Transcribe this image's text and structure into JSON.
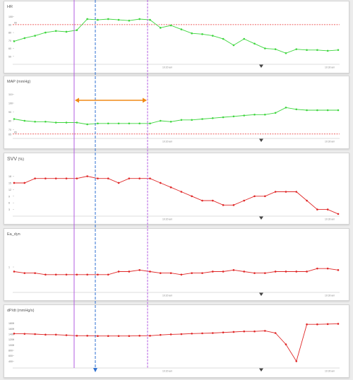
{
  "colors": {
    "green": "#3fd63f",
    "red": "#e02828",
    "threshold": "#e83030",
    "cursor_purple": "#b35ce0",
    "cursor_blue": "#2d6fd0",
    "range_arrow": "#f08a16",
    "marker": "#444444"
  },
  "time_labels": [
    "10:20 am",
    "10:30 am"
  ],
  "panels": [
    {
      "title": "HR",
      "series_color": "green",
      "ylim": [
        40,
        105
      ],
      "yticks": [
        {
          "v": 100,
          "t": "100"
        },
        {
          "v": 90,
          "t": "90"
        },
        {
          "v": 80,
          "t": "80"
        },
        {
          "v": 70,
          "t": "70"
        },
        {
          "v": 60,
          "t": "60"
        },
        {
          "v": 50,
          "t": "50"
        }
      ],
      "threshold": {
        "v": 90,
        "label": "90"
      },
      "values": [
        69,
        73,
        76,
        80,
        82,
        81,
        83,
        97,
        96,
        97,
        96,
        95,
        97,
        96,
        86,
        89,
        84,
        79,
        78,
        76,
        72,
        64,
        72,
        66,
        60,
        59,
        54,
        59,
        58,
        58,
        57,
        58
      ]
    },
    {
      "title": "MAP (mmHg)",
      "series_color": "green",
      "ylim": [
        60,
        116
      ],
      "yticks": [
        {
          "v": 110,
          "t": "110"
        },
        {
          "v": 100,
          "t": "100"
        },
        {
          "v": 90,
          "t": "90"
        },
        {
          "v": 80,
          "t": "80"
        },
        {
          "v": 70,
          "t": "70"
        },
        {
          "v": 65,
          "t": "65"
        }
      ],
      "threshold": {
        "v": 65,
        "label": "65"
      },
      "values": [
        82,
        80,
        79,
        79,
        78,
        78,
        78,
        76,
        77,
        77,
        77,
        77,
        77,
        77,
        80,
        79,
        81,
        81,
        82,
        83,
        84,
        85,
        86,
        87,
        87,
        89,
        95,
        93,
        92,
        92,
        92,
        92
      ]
    },
    {
      "title": "SVV",
      "unit": "(%)",
      "series_color": "red",
      "ylim": [
        0,
        22
      ],
      "yticks": [
        {
          "v": 18,
          "t": "18"
        },
        {
          "v": 15,
          "t": "15"
        },
        {
          "v": 12,
          "t": "12"
        },
        {
          "v": 9,
          "t": "9"
        },
        {
          "v": 6,
          "t": "6"
        },
        {
          "v": 3,
          "t": "3"
        }
      ],
      "values": [
        15,
        15,
        17,
        17,
        17,
        17,
        17,
        18,
        17,
        17,
        15,
        17,
        17,
        17,
        15,
        13,
        11,
        9,
        7,
        7,
        5,
        5,
        7,
        9,
        9,
        11,
        11,
        11,
        7,
        3,
        3,
        1
      ]
    },
    {
      "title": "Ea_dyn",
      "series_color": "red",
      "ylim": [
        0,
        2
      ],
      "yticks": [
        {
          "v": 1,
          "t": "1"
        }
      ],
      "values": [
        0.82,
        0.76,
        0.76,
        0.7,
        0.7,
        0.7,
        0.7,
        0.7,
        0.7,
        0.7,
        0.82,
        0.82,
        0.88,
        0.82,
        0.76,
        0.76,
        0.7,
        0.76,
        0.76,
        0.82,
        0.82,
        0.88,
        0.82,
        0.76,
        0.76,
        0.82,
        0.82,
        0.82,
        0.82,
        0.94,
        0.94,
        0.88
      ]
    },
    {
      "title": "dP/dt (mmHg/s)",
      "series_color": "red",
      "ylim": [
        150,
        2000
      ],
      "yticks": [
        {
          "v": 1800,
          "t": "1800"
        },
        {
          "v": 1600,
          "t": "1600"
        },
        {
          "v": 1400,
          "t": "1400"
        },
        {
          "v": 1200,
          "t": "1200"
        },
        {
          "v": 1000,
          "t": "1000"
        },
        {
          "v": 800,
          "t": "800"
        },
        {
          "v": 600,
          "t": "600"
        },
        {
          "v": 400,
          "t": "400"
        }
      ],
      "values": [
        1420,
        1410,
        1400,
        1380,
        1380,
        1360,
        1340,
        1340,
        1330,
        1330,
        1330,
        1330,
        1340,
        1340,
        1370,
        1390,
        1400,
        1420,
        1430,
        1440,
        1460,
        1480,
        1500,
        1500,
        1520,
        1440,
        1020,
        400,
        1760,
        1760,
        1770,
        1780
      ]
    }
  ]
}
